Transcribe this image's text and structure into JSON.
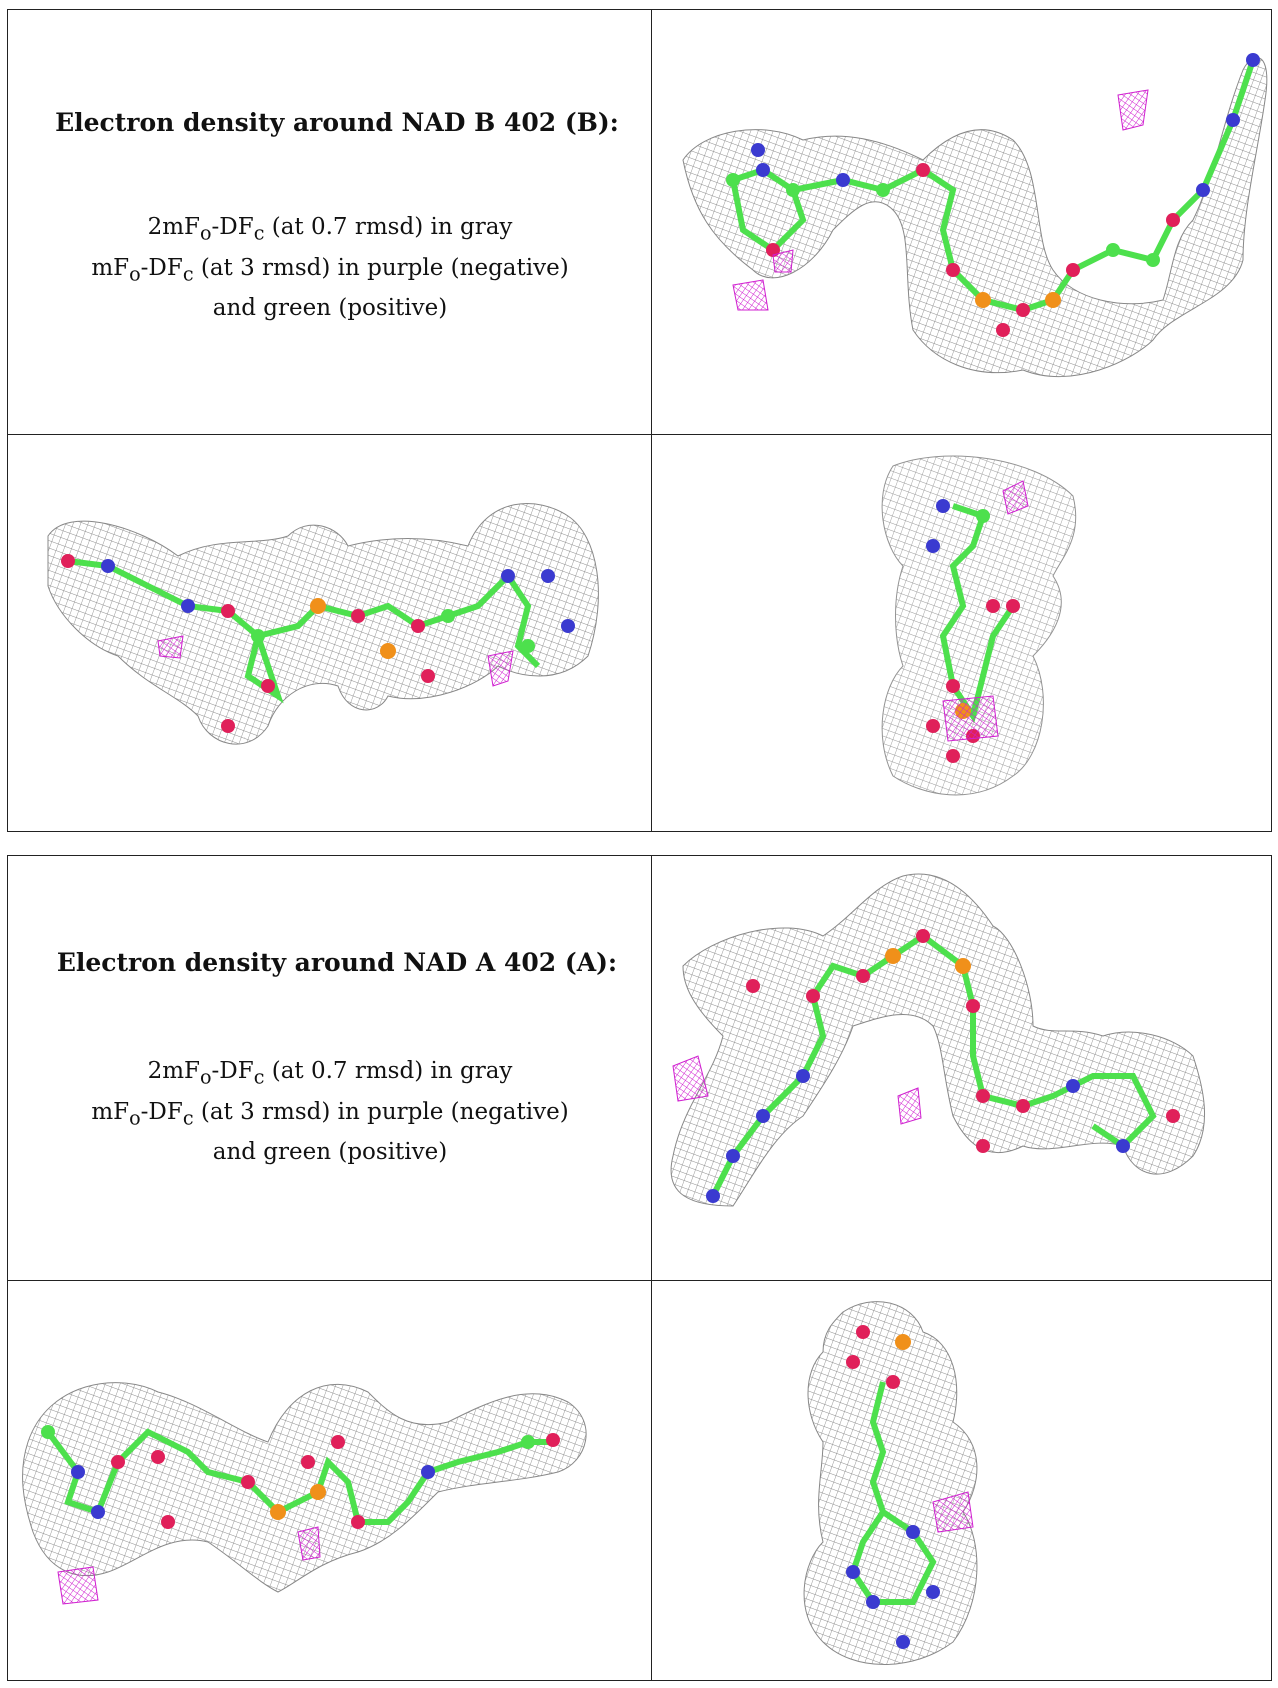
{
  "panels": [
    {
      "title": "Electron density around NAD B 402 (B):",
      "legend_line1_pre": "2mF",
      "legend_line1_sub1": "o",
      "legend_line1_mid": "-DF",
      "legend_line1_sub2": "c",
      "legend_line1_post": " (at 0.7 rmsd) in gray",
      "legend_line2_pre": "mF",
      "legend_line2_sub1": "o",
      "legend_line2_mid": "-DF",
      "legend_line2_sub2": "c",
      "legend_line2_post": " (at 3 rmsd) in purple (negative)",
      "legend_line3": "and green (positive)"
    },
    {
      "title": "Electron density around NAD A 402 (A):",
      "legend_line1_pre": "2mF",
      "legend_line1_sub1": "o",
      "legend_line1_mid": "-DF",
      "legend_line1_sub2": "c",
      "legend_line1_post": " (at 0.7 rmsd) in gray",
      "legend_line2_pre": "mF",
      "legend_line2_sub1": "o",
      "legend_line2_mid": "-DF",
      "legend_line2_sub2": "c",
      "legend_line2_post": " (at 3 rmsd) in purple (negative)",
      "legend_line3": "and green (positive)"
    }
  ],
  "colors": {
    "mesh_gray": "#9a9a9a",
    "carbon_green": "#4de04d",
    "nitrogen_blue": "#3a3ad0",
    "oxygen_red": "#e0205a",
    "phosphorus_orange": "#f0901a",
    "negative_density_purple": "#d020d0"
  }
}
